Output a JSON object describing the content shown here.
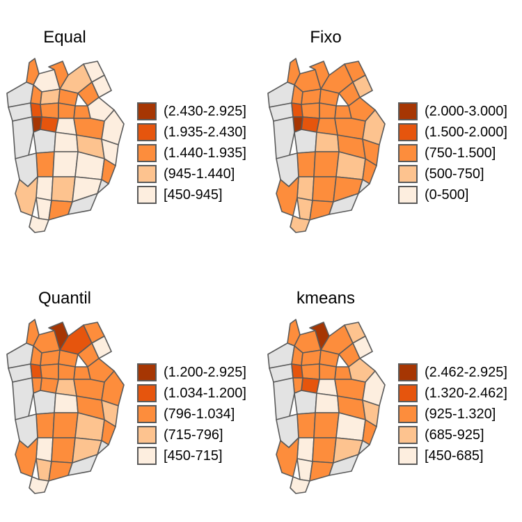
{
  "colors": {
    "na": "#e3e3e3",
    "border": "#595959",
    "classes": [
      "#fdeedf",
      "#fdc38f",
      "#fd8d3c",
      "#e6550d",
      "#a63603"
    ]
  },
  "panels": [
    {
      "title": "Equal",
      "legend": [
        "(2.430-2.925]",
        "(1.935-2.430]",
        "(1.440-1.935]",
        "(945-1.440]",
        "[450-945]"
      ],
      "hot": [
        20,
        14,
        17,
        11,
        2,
        15,
        6,
        10
      ],
      "emphasis": 0.22
    },
    {
      "title": "Fixo",
      "legend": [
        "(2.000-3.000]",
        "(1.500-2.000]",
        "(750-1.500]",
        "(500-750]",
        "(0-500]"
      ],
      "hot": [
        20,
        14,
        17,
        11,
        2,
        15,
        6,
        10
      ],
      "emphasis": 0.78
    },
    {
      "title": "Quantil",
      "legend": [
        "(1.200-2.925]",
        "(1.034-1.200]",
        "(796-1.034]",
        "(715-796]",
        "[450-715]"
      ],
      "hot": [
        2,
        3,
        14,
        20,
        17,
        11,
        15,
        6,
        10,
        21
      ],
      "emphasis": 0.62
    },
    {
      "title": "kmeans",
      "legend": [
        "(2.462-2.925]",
        "(1.320-2.462]",
        "(925-1.320]",
        "(685-925]",
        "[450-685]"
      ],
      "hot": [
        2,
        14,
        17,
        11,
        20,
        15,
        6,
        10
      ],
      "emphasis": 0.5
    }
  ]
}
